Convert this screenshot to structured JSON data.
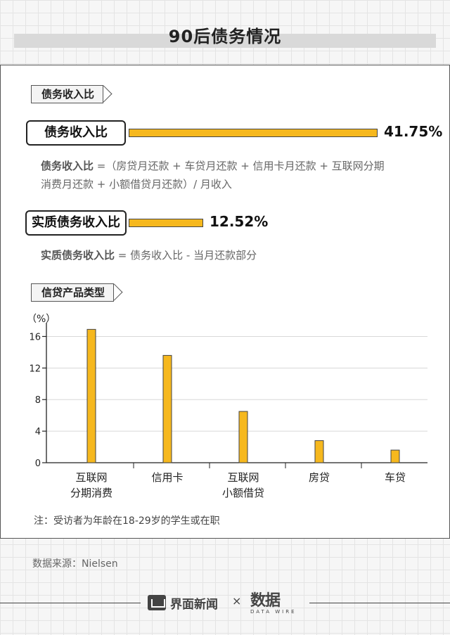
{
  "title": "90后债务情况",
  "section1": {
    "tag": "债务收入比",
    "ratio1": {
      "label": "债务收入比",
      "value_text": "41.75%",
      "value": 41.75
    },
    "formula1_term": "债务收入比",
    "formula1_line1": " =（房贷月还款 + 车贷月还款 + 信用卡月还款 + 互联网分期",
    "formula1_line2": "消费月还款 + 小额借贷月还款）/ 月收入",
    "ratio2": {
      "label": "实质债务收入比",
      "value_text": "12.52%",
      "value": 12.52
    },
    "formula2_term": "实质债务收入比",
    "formula2_rest": " = 债务收入比 - 当月还款部分"
  },
  "section2": {
    "tag": "信贷产品类型"
  },
  "chart_data": {
    "type": "bar",
    "ylabel": "（%）",
    "yticks": [
      0,
      4,
      8,
      12,
      16
    ],
    "ylim": [
      0,
      17.2
    ],
    "categories": [
      [
        "互联网",
        "分期消费"
      ],
      [
        "信用卡"
      ],
      [
        "互联网",
        "小额借贷"
      ],
      [
        "房贷"
      ],
      [
        "车贷"
      ]
    ],
    "values": [
      16.9,
      13.6,
      6.5,
      2.8,
      1.6
    ],
    "grid": true,
    "bar_color": "#f6b81e"
  },
  "note": "注：受访者为年龄在18-29岁的学生或在职",
  "source": "数据来源：Nielsen",
  "footer": {
    "brand1": "界面新闻",
    "sep": "×",
    "brand2": "数据",
    "brand2_sub": "DATA WIRE"
  },
  "colors": {
    "accent": "#f6b81e",
    "outline": "#222222"
  }
}
